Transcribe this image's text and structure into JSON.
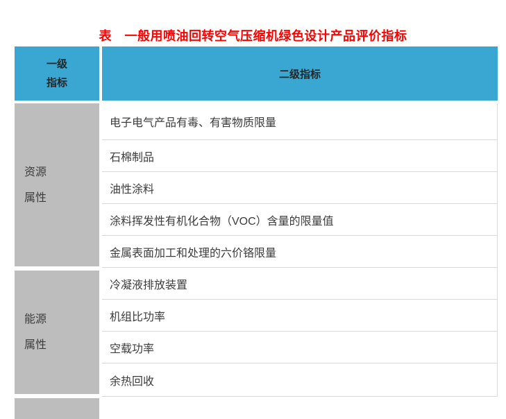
{
  "title": "表　一般用喷油回转空气压缩机绿色设计产品评价指标",
  "colors": {
    "title_red": "#ff0000",
    "header_bg": "#3aa6d2",
    "category_bg": "#bdbdbd",
    "row_border": "#d9d9d9",
    "body_text": "#3c3c3c",
    "header_text": "#262626"
  },
  "table": {
    "header": {
      "col1_line1": "一级",
      "col1_line2": "指标",
      "col2": "二级指标"
    },
    "sections": [
      {
        "category_line1": "资源",
        "category_line2": "属性",
        "rows": [
          "电子电气产品有毒、有害物质限量",
          "石棉制品",
          "油性涂料",
          "涂料挥发性有机化合物（VOC）含量的限量值",
          "金属表面加工和处理的六价铬限量"
        ]
      },
      {
        "category_line1": "能源",
        "category_line2": "属性",
        "rows": [
          "冷凝液排放装置",
          "机组比功率",
          "空载功率",
          "余热回收"
        ]
      }
    ]
  }
}
